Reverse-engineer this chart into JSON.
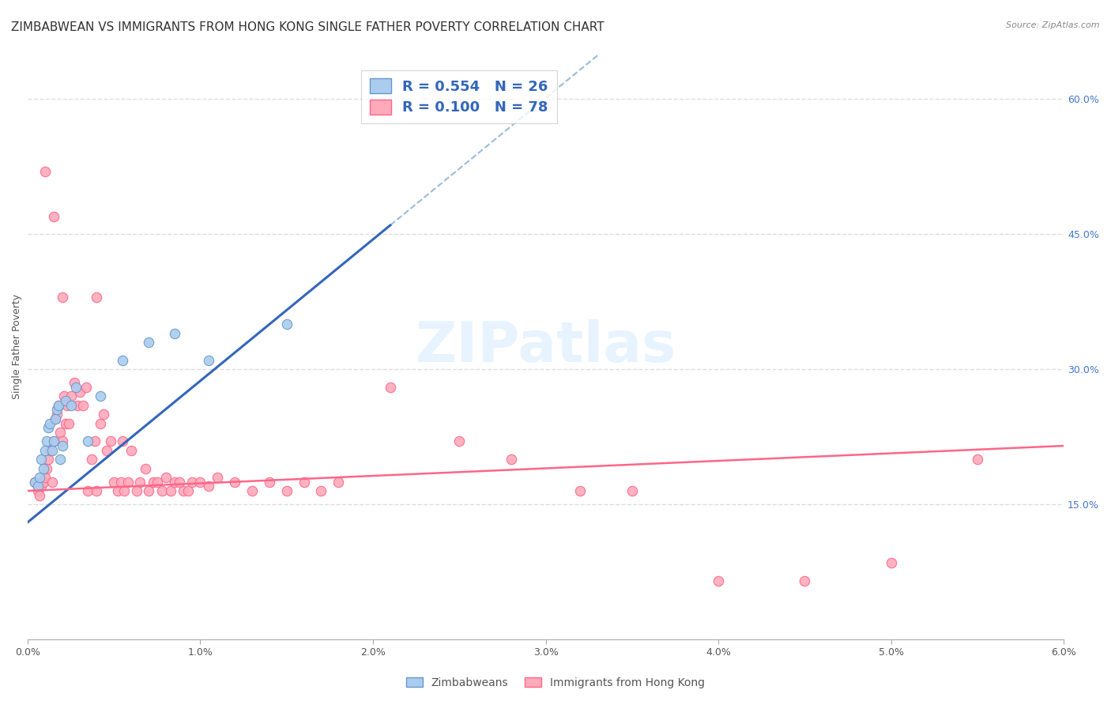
{
  "title": "ZIMBABWEAN VS IMMIGRANTS FROM HONG KONG SINGLE FATHER POVERTY CORRELATION CHART",
  "source": "Source: ZipAtlas.com",
  "ylabel": "Single Father Poverty",
  "y_ticks_right": [
    0.15,
    0.3,
    0.45,
    0.6
  ],
  "y_tick_labels_right": [
    "15.0%",
    "30.0%",
    "45.0%",
    "60.0%"
  ],
  "xlim": [
    0.0,
    6.0
  ],
  "ylim": [
    0.0,
    0.65
  ],
  "legend1_label": "Zimbabweans",
  "legend2_label": "Immigrants from Hong Kong",
  "R1": 0.554,
  "N1": 26,
  "R2": 0.1,
  "N2": 78,
  "blue_dot_color": "#AACCEE",
  "blue_edge_color": "#6699CC",
  "pink_dot_color": "#FFAABB",
  "pink_edge_color": "#FF6688",
  "trend_blue_color": "#3366BB",
  "trend_pink_color": "#FF6688",
  "dashed_line_color": "#99BBDD",
  "grid_color": "#DDDDDD",
  "background_color": "#FFFFFF",
  "title_fontsize": 11,
  "axis_label_fontsize": 9,
  "tick_fontsize": 9,
  "blue_trend_x0": 0.0,
  "blue_trend_y0": 0.13,
  "blue_trend_x1": 2.1,
  "blue_trend_y1": 0.46,
  "blue_trend_xend": 6.0,
  "pink_trend_x0": 0.0,
  "pink_trend_y0": 0.165,
  "pink_trend_x1": 6.0,
  "pink_trend_y1": 0.215,
  "zim_x": [
    0.04,
    0.06,
    0.07,
    0.08,
    0.09,
    0.1,
    0.11,
    0.12,
    0.13,
    0.14,
    0.15,
    0.16,
    0.17,
    0.18,
    0.19,
    0.2,
    0.22,
    0.25,
    0.28,
    0.35,
    0.42,
    0.55,
    0.7,
    0.85,
    1.05,
    1.5
  ],
  "zim_y": [
    0.175,
    0.17,
    0.18,
    0.2,
    0.19,
    0.21,
    0.22,
    0.235,
    0.24,
    0.21,
    0.22,
    0.245,
    0.255,
    0.26,
    0.2,
    0.215,
    0.265,
    0.26,
    0.28,
    0.22,
    0.27,
    0.31,
    0.33,
    0.34,
    0.31,
    0.35
  ],
  "hk_x": [
    0.04,
    0.06,
    0.07,
    0.08,
    0.09,
    0.1,
    0.11,
    0.12,
    0.13,
    0.14,
    0.15,
    0.16,
    0.17,
    0.18,
    0.19,
    0.2,
    0.21,
    0.22,
    0.23,
    0.24,
    0.25,
    0.27,
    0.29,
    0.3,
    0.32,
    0.34,
    0.35,
    0.37,
    0.39,
    0.4,
    0.42,
    0.44,
    0.46,
    0.48,
    0.5,
    0.52,
    0.54,
    0.56,
    0.58,
    0.6,
    0.63,
    0.65,
    0.68,
    0.7,
    0.73,
    0.75,
    0.78,
    0.8,
    0.83,
    0.85,
    0.88,
    0.9,
    0.93,
    0.95,
    1.0,
    1.05,
    1.1,
    1.2,
    1.3,
    1.4,
    1.5,
    1.6,
    1.7,
    1.8,
    2.1,
    2.5,
    2.8,
    3.2,
    3.5,
    4.0,
    4.5,
    5.0,
    5.5,
    0.4,
    0.55,
    0.1,
    0.15,
    0.2
  ],
  "hk_y": [
    0.175,
    0.165,
    0.16,
    0.17,
    0.175,
    0.18,
    0.19,
    0.2,
    0.21,
    0.175,
    0.22,
    0.245,
    0.25,
    0.26,
    0.23,
    0.22,
    0.27,
    0.24,
    0.26,
    0.24,
    0.27,
    0.285,
    0.26,
    0.275,
    0.26,
    0.28,
    0.165,
    0.2,
    0.22,
    0.165,
    0.24,
    0.25,
    0.21,
    0.22,
    0.175,
    0.165,
    0.175,
    0.165,
    0.175,
    0.21,
    0.165,
    0.175,
    0.19,
    0.165,
    0.175,
    0.175,
    0.165,
    0.18,
    0.165,
    0.175,
    0.175,
    0.165,
    0.165,
    0.175,
    0.175,
    0.17,
    0.18,
    0.175,
    0.165,
    0.175,
    0.165,
    0.175,
    0.165,
    0.175,
    0.28,
    0.22,
    0.2,
    0.165,
    0.165,
    0.065,
    0.065,
    0.085,
    0.2,
    0.38,
    0.22,
    0.52,
    0.47,
    0.38
  ]
}
